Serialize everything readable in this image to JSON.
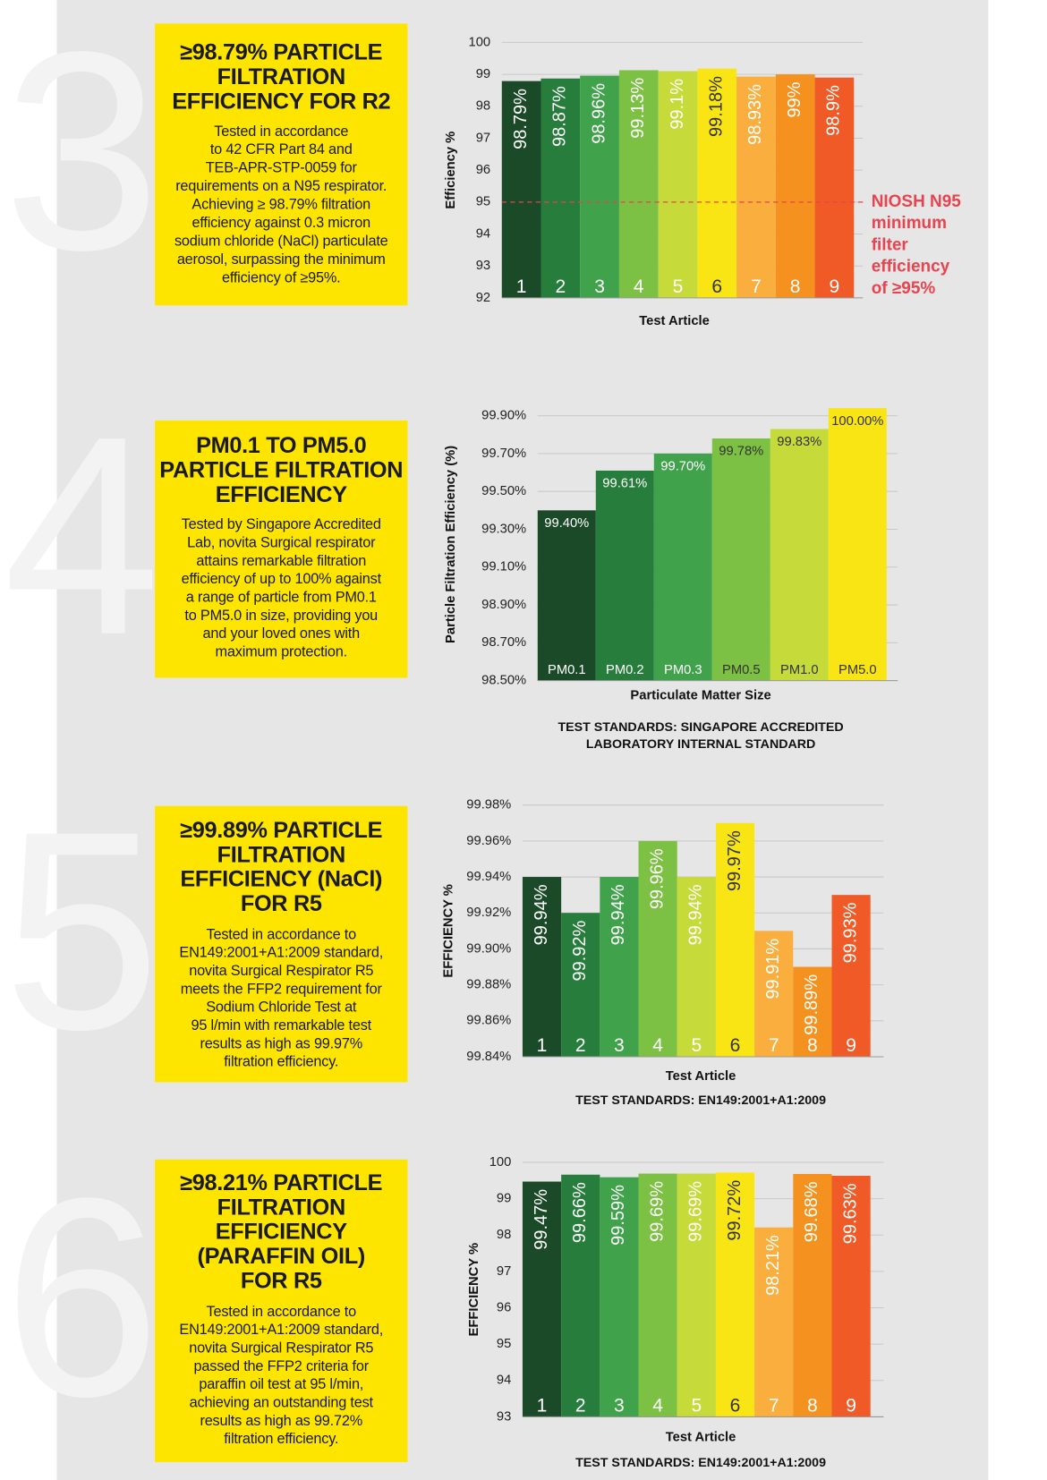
{
  "panels": [
    {
      "number": "3",
      "title": [
        "≥98.79% PARTICLE",
        "FILTRATION",
        "EFFICIENCY FOR R2"
      ],
      "body": [
        "Tested in accordance",
        "to 42 CFR Part 84 and",
        "TEB-APR-STP-0059 for",
        "requirements on a N95 respirator.",
        "Achieving ≥ 98.79% filtration",
        "efficiency against 0.3 micron",
        "sodium chloride (NaCl) particulate",
        "aerosol, surpassing the minimum",
        "efficiency of ≥95%."
      ]
    },
    {
      "number": "4",
      "title": [
        "PM0.1 TO PM5.0",
        "PARTICLE FILTRATION",
        "EFFICIENCY"
      ],
      "body": [
        "Tested by Singapore Accredited",
        "Lab, novita Surgical respirator",
        "attains remarkable filtration",
        "efficiency of up to 100% against",
        "a range of particle from PM0.1",
        "to PM5.0 in size, providing you",
        "and your loved ones with",
        "maximum protection."
      ]
    },
    {
      "number": "5",
      "title": [
        "≥99.89% PARTICLE",
        "FILTRATION",
        "EFFICIENCY (NaCl)",
        "FOR R5"
      ],
      "body": [
        "Tested in accordance to",
        "EN149:2001+A1:2009 standard,",
        "novita Surgical Respirator R5",
        "meets the FFP2 requirement for",
        "Sodium Chloride Test at",
        "95 l/min with remarkable test",
        "results as high as 99.97%",
        "filtration efficiency."
      ]
    },
    {
      "number": "6",
      "title": [
        "≥98.21% PARTICLE",
        "FILTRATION",
        "EFFICIENCY",
        "(PARAFFIN OIL)",
        "FOR R5"
      ],
      "body": [
        "Tested in accordance to",
        "EN149:2001+A1:2009 standard,",
        "novita Surgical Respirator R5",
        "passed the FFP2 criteria for",
        "paraffin oil test at 95 l/min,",
        "achieving an outstanding test",
        "results as high as 99.72%",
        "filtration efficiency."
      ]
    }
  ],
  "chart_data": [
    {
      "type": "bar",
      "x_label": "Test Article",
      "y_label": "Efficiency %",
      "categories": [
        "1",
        "2",
        "3",
        "4",
        "5",
        "6",
        "7",
        "8",
        "9"
      ],
      "values": [
        98.79,
        98.87,
        98.96,
        99.13,
        99.1,
        99.18,
        98.93,
        99,
        98.9
      ],
      "value_labels": [
        "98.79%",
        "98.87%",
        "98.96%",
        "99.13%",
        "99.1%",
        "99.18%",
        "98.93%",
        "99%",
        "98.9%"
      ],
      "colors": [
        "#1b4a28",
        "#277d3b",
        "#40a24a",
        "#7cc143",
        "#c6db3a",
        "#f8e513",
        "#f9ae3d",
        "#f5921f",
        "#f05a26"
      ],
      "ylim": [
        92,
        100
      ],
      "yticks": [
        92,
        93,
        94,
        95,
        96,
        97,
        98,
        99,
        100
      ],
      "grid": true,
      "reference_line": {
        "value": 95,
        "color": "#e8434f",
        "label": [
          "NIOSH N95",
          "minimum",
          "filter",
          "efficiency",
          "of ≥95%"
        ]
      }
    },
    {
      "type": "bar",
      "x_label": "Particulate Matter Size",
      "y_label": "Particle Filtration Efficiency (%)",
      "categories": [
        "PM0.1",
        "PM0.2",
        "PM0.3",
        "PM0.5",
        "PM1.0",
        "PM5.0"
      ],
      "values": [
        99.4,
        99.61,
        99.7,
        99.78,
        99.83,
        100
      ],
      "value_labels": [
        "99.40%",
        "99.61%",
        "99.70%",
        "99.78%",
        "99.83%",
        "100.00%"
      ],
      "colors": [
        "#1b4a28",
        "#277d3b",
        "#40a24a",
        "#7cc143",
        "#c6db3a",
        "#f8e513"
      ],
      "ylim": [
        98.5,
        99.94
      ],
      "yticks": [
        {
          "value": 98.5,
          "label": "98.50%"
        },
        {
          "value": 98.7,
          "label": "98.70%"
        },
        {
          "value": 98.9,
          "label": "98.90%"
        },
        {
          "value": 99.1,
          "label": "99.10%"
        },
        {
          "value": 99.3,
          "label": "99.30%"
        },
        {
          "value": 99.5,
          "label": "99.50%"
        },
        {
          "value": 99.7,
          "label": "99.70%"
        },
        {
          "value": 99.9,
          "label": "99.90%"
        }
      ],
      "grid": true,
      "notes": [
        "TEST STANDARDS: SINGAPORE ACCREDITED",
        "LABORATORY INTERNAL STANDARD"
      ]
    },
    {
      "type": "bar",
      "x_label": "Test Article",
      "y_label": "EFFICIENCY %",
      "categories": [
        "1",
        "2",
        "3",
        "4",
        "5",
        "6",
        "7",
        "8",
        "9"
      ],
      "values": [
        99.94,
        99.92,
        99.94,
        99.96,
        99.94,
        99.97,
        99.91,
        99.89,
        99.93
      ],
      "value_labels": [
        "99.94%",
        "99.92%",
        "99.94%",
        "99.96%",
        "99.94%",
        "99.97%",
        "99.91%",
        "99.89%",
        "99.93%"
      ],
      "colors": [
        "#1b4a28",
        "#277d3b",
        "#40a24a",
        "#7cc143",
        "#c6db3a",
        "#f8e513",
        "#f9ae3d",
        "#f5921f",
        "#f05a26"
      ],
      "ylim": [
        99.84,
        99.98
      ],
      "yticks": [
        {
          "value": 99.84,
          "label": "99.84%"
        },
        {
          "value": 99.86,
          "label": "99.86%"
        },
        {
          "value": 99.88,
          "label": "99.88%"
        },
        {
          "value": 99.9,
          "label": "99.90%"
        },
        {
          "value": 99.92,
          "label": "99.92%"
        },
        {
          "value": 99.94,
          "label": "99.94%"
        },
        {
          "value": 99.96,
          "label": "99.96%"
        },
        {
          "value": 99.98,
          "label": "99.98%"
        }
      ],
      "grid": true,
      "notes": [
        "TEST STANDARDS: EN149:2001+A1:2009"
      ]
    },
    {
      "type": "bar",
      "x_label": "Test Article",
      "y_label": "EFFICIENCY %",
      "categories": [
        "1",
        "2",
        "3",
        "4",
        "5",
        "6",
        "7",
        "8",
        "9"
      ],
      "values": [
        99.47,
        99.66,
        99.59,
        99.69,
        99.69,
        99.72,
        98.21,
        99.68,
        99.63
      ],
      "value_labels": [
        "99.47%",
        "99.66%",
        "99.59%",
        "99.69%",
        "99.69%",
        "99.72%",
        "98.21%",
        "99.68%",
        "99.63%"
      ],
      "colors": [
        "#1b4a28",
        "#277d3b",
        "#40a24a",
        "#7cc143",
        "#c6db3a",
        "#f8e513",
        "#f9ae3d",
        "#f5921f",
        "#f05a26"
      ],
      "ylim": [
        93,
        100
      ],
      "yticks": [
        93,
        94,
        95,
        96,
        97,
        98,
        99,
        100
      ],
      "grid": true,
      "notes": [
        "TEST STANDARDS: EN149:2001+A1:2009"
      ]
    }
  ]
}
